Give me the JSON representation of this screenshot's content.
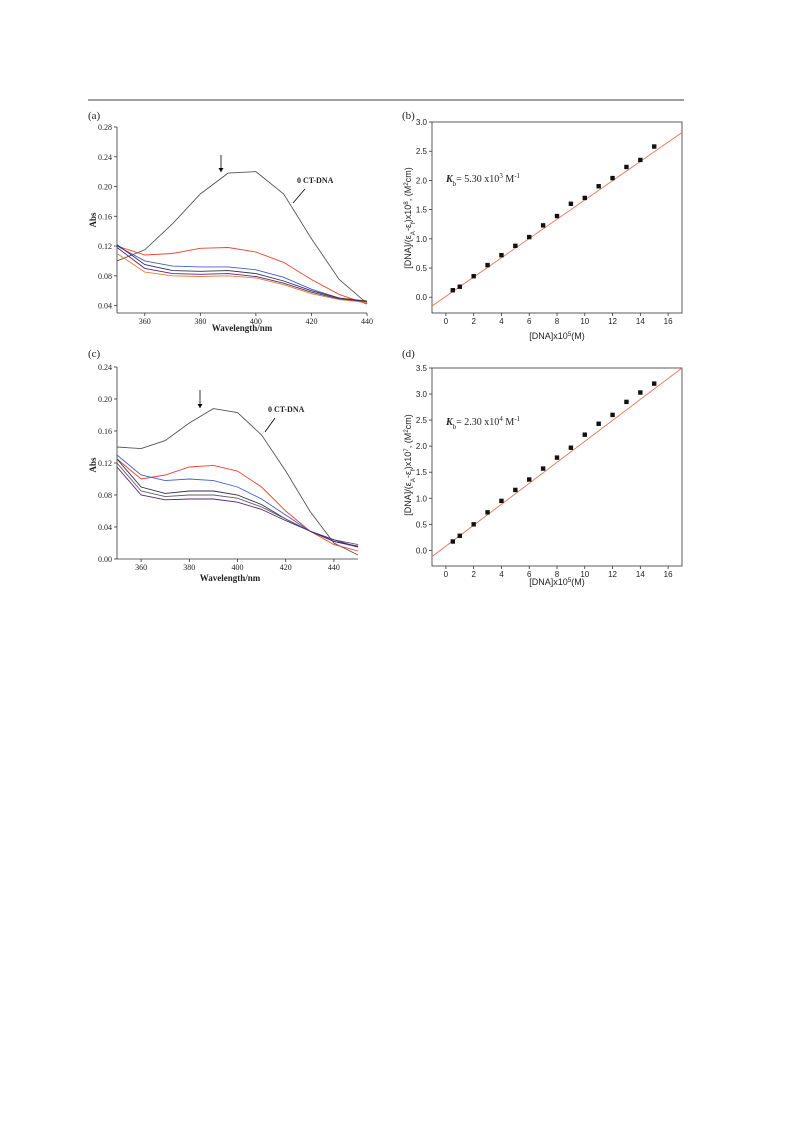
{
  "chart_data": [
    {
      "type": "line",
      "label": "(a)",
      "annotation": "0 CT-DNA",
      "xlabel": [
        {
          "t": "Wavelength/nm"
        }
      ],
      "ylabel": [
        {
          "t": "Abs"
        }
      ],
      "xlim": [
        350,
        440
      ],
      "xticks": [
        360,
        380,
        400,
        420,
        440
      ],
      "ylim": [
        0.03,
        0.28
      ],
      "yticks": [
        0.04,
        0.08,
        0.12,
        0.16,
        {
          "value": 0.2,
          "label": "0.20"
        },
        0.24,
        0.28
      ],
      "x": [
        350,
        360,
        370,
        380,
        390,
        400,
        410,
        420,
        430,
        440
      ],
      "series": [
        {
          "color": "#555555",
          "values": [
            0.1,
            0.115,
            0.15,
            0.19,
            0.218,
            0.22,
            0.19,
            0.13,
            0.075,
            0.043
          ]
        },
        {
          "color": "#e8442f",
          "values": [
            0.12,
            0.108,
            0.11,
            0.117,
            0.118,
            0.112,
            0.098,
            0.075,
            0.055,
            0.042
          ]
        },
        {
          "color": "#4060d0",
          "values": [
            0.12,
            0.1,
            0.093,
            0.092,
            0.092,
            0.088,
            0.078,
            0.062,
            0.05,
            0.045
          ]
        },
        {
          "color": "#303048",
          "values": [
            0.122,
            0.095,
            0.087,
            0.086,
            0.087,
            0.083,
            0.073,
            0.06,
            0.05,
            0.046
          ]
        },
        {
          "color": "#602080",
          "values": [
            0.118,
            0.09,
            0.083,
            0.082,
            0.083,
            0.079,
            0.07,
            0.058,
            0.049,
            0.045
          ]
        },
        {
          "color": "#e08030",
          "values": [
            0.11,
            0.085,
            0.08,
            0.079,
            0.08,
            0.077,
            0.068,
            0.056,
            0.048,
            0.044
          ]
        }
      ]
    },
    {
      "type": "scatter",
      "label": "(b)",
      "annotation": [
        {
          "i": "K"
        },
        {
          "sub": "b"
        },
        {
          "t": "= 5.30 x10"
        },
        {
          "sup": "3"
        },
        {
          "t": " M"
        },
        {
          "sup": "-1"
        }
      ],
      "xlabel": [
        {
          "t": "[DNA]x10"
        },
        {
          "sup": "5"
        },
        {
          "t": "(M)"
        }
      ],
      "ylabel": [
        {
          "t": "[DNA]/(ε"
        },
        {
          "sub": "A"
        },
        {
          "t": "-ε"
        },
        {
          "sub": "f"
        },
        {
          "t": ")x10"
        },
        {
          "sup": "8"
        },
        {
          "t": ", (M"
        },
        {
          "sup": "2"
        },
        {
          "t": "cm)"
        }
      ],
      "xlim": [
        -1,
        17
      ],
      "xticks": [
        0,
        2,
        4,
        6,
        8,
        10,
        12,
        14,
        16
      ],
      "ylim": [
        -0.27,
        3.0
      ],
      "yticks": [
        {
          "value": 0,
          "label": "0.0"
        },
        0.5,
        {
          "value": 1,
          "label": "1.0"
        },
        1.5,
        {
          "value": 2,
          "label": "2.0"
        },
        2.5,
        {
          "value": 3,
          "label": "3.0"
        }
      ],
      "x": [
        0.5,
        1,
        2,
        3,
        4,
        5,
        6,
        7,
        8,
        9,
        10,
        11,
        12,
        13,
        14,
        15
      ],
      "values": [
        0.12,
        0.18,
        0.36,
        0.55,
        0.72,
        0.88,
        1.03,
        1.23,
        1.39,
        1.6,
        1.7,
        1.9,
        2.04,
        2.23,
        2.35,
        2.58
      ],
      "color": "#111111",
      "fit": {
        "x": [
          -1,
          17
        ],
        "values": [
          -0.15,
          2.82
        ],
        "color": "#e8735a"
      }
    },
    {
      "type": "line",
      "label": "(c)",
      "annotation": "0 CT-DNA",
      "xlabel": [
        {
          "t": "Wavelength/nm"
        }
      ],
      "ylabel": [
        {
          "t": "Abs"
        }
      ],
      "xlim": [
        350,
        450
      ],
      "xticks": [
        360,
        380,
        400,
        420,
        440
      ],
      "ylim": [
        0,
        0.24
      ],
      "yticks": [
        {
          "value": 0,
          "label": "0.00"
        },
        0.04,
        0.08,
        0.12,
        0.16,
        {
          "value": 0.2,
          "label": "0.20"
        },
        0.24
      ],
      "x": [
        350,
        360,
        370,
        380,
        390,
        400,
        410,
        420,
        430,
        440,
        450
      ],
      "series": [
        {
          "color": "#555555",
          "values": [
            0.14,
            0.138,
            0.148,
            0.17,
            0.188,
            0.183,
            0.155,
            0.11,
            0.06,
            0.02,
            0.005
          ]
        },
        {
          "color": "#e8442f",
          "values": [
            0.125,
            0.1,
            0.105,
            0.115,
            0.117,
            0.11,
            0.09,
            0.06,
            0.035,
            0.018,
            0.01
          ]
        },
        {
          "color": "#4060d0",
          "values": [
            0.13,
            0.105,
            0.098,
            0.1,
            0.098,
            0.09,
            0.075,
            0.055,
            0.035,
            0.022,
            0.015
          ]
        },
        {
          "color": "#303048",
          "values": [
            0.125,
            0.09,
            0.082,
            0.085,
            0.085,
            0.08,
            0.068,
            0.05,
            0.035,
            0.022,
            0.016
          ]
        },
        {
          "color": "#606060",
          "values": [
            0.12,
            0.085,
            0.078,
            0.08,
            0.08,
            0.076,
            0.065,
            0.05,
            0.035,
            0.024,
            0.018
          ]
        },
        {
          "color": "#602080",
          "values": [
            0.115,
            0.08,
            0.074,
            0.075,
            0.075,
            0.071,
            0.062,
            0.048,
            0.035,
            0.024,
            0.015
          ]
        }
      ]
    },
    {
      "type": "scatter",
      "label": "(d)",
      "annotation": [
        {
          "i": "K"
        },
        {
          "sub": "b"
        },
        {
          "t": "= 2.30 x10"
        },
        {
          "sup": "4"
        },
        {
          "t": " M"
        },
        {
          "sup": "-1"
        }
      ],
      "xlabel": [
        {
          "t": "[DNA]x10"
        },
        {
          "sup": "5"
        },
        {
          "t": "(M)"
        }
      ],
      "ylabel": [
        {
          "t": "[DNA]/(ε"
        },
        {
          "sub": "A"
        },
        {
          "t": "-ε"
        },
        {
          "sub": "f"
        },
        {
          "t": ")x10"
        },
        {
          "sup": "7"
        },
        {
          "t": ", (M"
        },
        {
          "sup": "2"
        },
        {
          "t": "cm)"
        }
      ],
      "xlim": [
        -1,
        17
      ],
      "xticks": [
        0,
        2,
        4,
        6,
        8,
        10,
        12,
        14,
        16
      ],
      "ylim": [
        -0.3,
        3.5
      ],
      "yticks": [
        {
          "value": 0,
          "label": "0.0"
        },
        0.5,
        {
          "value": 1,
          "label": "1.0"
        },
        1.5,
        {
          "value": 2,
          "label": "2.0"
        },
        2.5,
        {
          "value": 3,
          "label": "3.0"
        },
        3.5
      ],
      "x": [
        0.5,
        1,
        2,
        3,
        4,
        5,
        6,
        7,
        8,
        9,
        10,
        11,
        12,
        13,
        14,
        15
      ],
      "values": [
        0.17,
        0.28,
        0.5,
        0.73,
        0.95,
        1.16,
        1.36,
        1.57,
        1.78,
        1.97,
        2.22,
        2.43,
        2.6,
        2.85,
        3.03,
        3.2
      ],
      "color": "#111111",
      "fit": {
        "x": [
          -1,
          17
        ],
        "values": [
          -0.12,
          3.5
        ],
        "color": "#e8735a"
      }
    }
  ]
}
